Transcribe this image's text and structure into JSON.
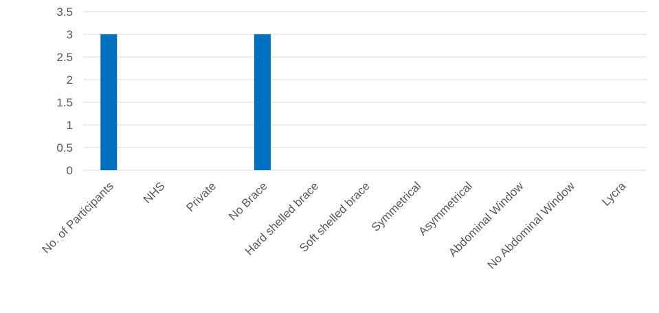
{
  "chart_data": {
    "type": "bar",
    "categories": [
      "No. of Participants",
      "NHS",
      "Private",
      "No Brace",
      "Hard shelled brace",
      "Soft shelled brace",
      "Symmetrical",
      "Asymmetrical",
      "Abdominal Window",
      "No Abdominal Window",
      "Lycra"
    ],
    "values": [
      3,
      0,
      0,
      3,
      0,
      0,
      0,
      0,
      0,
      0,
      0
    ],
    "title": "",
    "xlabel": "",
    "ylabel": "",
    "ylim": [
      0,
      3.5
    ],
    "yticks": [
      "0",
      "0.5",
      "1",
      "1.5",
      "2",
      "2.5",
      "3",
      "3.5"
    ],
    "grid": true,
    "bar_color": "#0070C0",
    "grid_color": "#d9d9d9"
  }
}
